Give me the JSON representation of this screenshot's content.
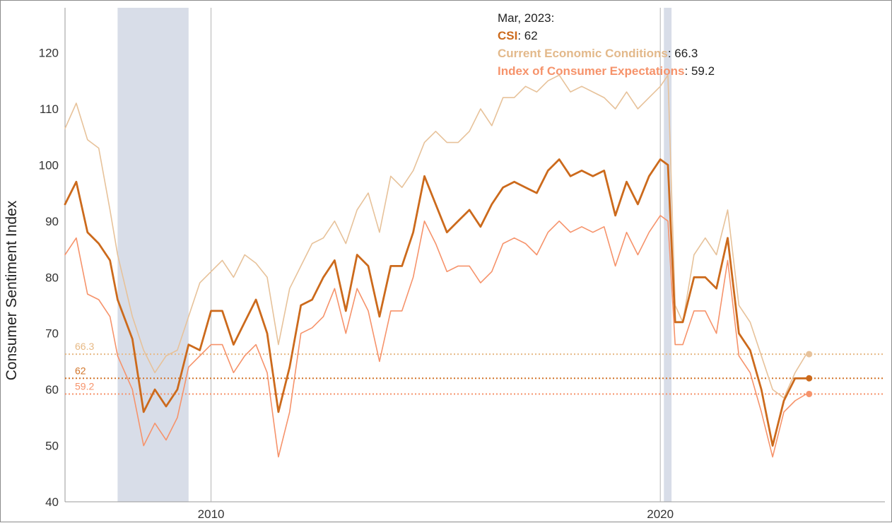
{
  "chart_data": {
    "type": "line",
    "ylabel": "Consumer Sentiment Index",
    "ylim": [
      40,
      128
    ],
    "yticks": [
      40,
      50,
      60,
      70,
      80,
      90,
      100,
      110,
      120
    ],
    "xlim": [
      2006.75,
      2025.0
    ],
    "xticks": [
      {
        "value": 2010,
        "label": "2010"
      },
      {
        "value": 2020,
        "label": "2020"
      }
    ],
    "recessions": [
      [
        2007.92,
        2009.5
      ],
      [
        2020.08,
        2020.25
      ]
    ],
    "tooltip": {
      "date": "Mar, 2023:",
      "rows": [
        {
          "name": "CSI",
          "value": ": 62"
        },
        {
          "name": "Current Economic Conditions",
          "value": ": 66.3"
        },
        {
          "name": "Index of Consumer Expectations",
          "value": ": 59.2"
        }
      ]
    },
    "reference_lines": [
      {
        "label": "66.3",
        "value": 66.3,
        "color": "#e7b985"
      },
      {
        "label": "62",
        "value": 62,
        "color": "#d2752a"
      },
      {
        "label": "59.2",
        "value": 59.2,
        "color": "#f6936b"
      }
    ],
    "series": [
      {
        "name": "Current Economic Conditions",
        "color": "#e7c29a",
        "x": [
          2006.75,
          2007.0,
          2007.25,
          2007.5,
          2007.75,
          2007.92,
          2008.25,
          2008.5,
          2008.75,
          2009.0,
          2009.25,
          2009.5,
          2009.75,
          2010.0,
          2010.25,
          2010.5,
          2010.75,
          2011.0,
          2011.25,
          2011.5,
          2011.75,
          2012.0,
          2012.25,
          2012.5,
          2012.75,
          2013.0,
          2013.25,
          2013.5,
          2013.75,
          2014.0,
          2014.25,
          2014.5,
          2014.75,
          2015.0,
          2015.25,
          2015.5,
          2015.75,
          2016.0,
          2016.25,
          2016.5,
          2016.75,
          2017.0,
          2017.25,
          2017.5,
          2017.75,
          2018.0,
          2018.25,
          2018.5,
          2018.75,
          2019.0,
          2019.25,
          2019.5,
          2019.75,
          2020.0,
          2020.17,
          2020.33,
          2020.5,
          2020.75,
          2021.0,
          2021.25,
          2021.5,
          2021.75,
          2022.0,
          2022.25,
          2022.5,
          2022.75,
          2023.0,
          2023.25
        ],
        "values": [
          106.5,
          111.0,
          104.5,
          103.0,
          92.0,
          84.0,
          73.0,
          67.0,
          63.0,
          66.0,
          67.0,
          73.0,
          79.0,
          81.0,
          83.0,
          80.0,
          84.0,
          82.5,
          80.0,
          68.0,
          78.0,
          82.0,
          86.0,
          87.0,
          90.0,
          86.0,
          92.0,
          95.0,
          88.0,
          98.0,
          96.0,
          99.0,
          104.0,
          106.0,
          104.0,
          104.0,
          106.0,
          110.0,
          107.0,
          112.0,
          112.0,
          114.0,
          113.0,
          115.0,
          116.0,
          113.0,
          114.0,
          113.0,
          112.0,
          110.0,
          113.0,
          110.0,
          112.0,
          114.0,
          116.0,
          75.0,
          72.0,
          84.0,
          87.0,
          84.0,
          92.0,
          75.0,
          72.0,
          66.0,
          60.0,
          58.5,
          63.0,
          66.3
        ]
      },
      {
        "name": "CSI",
        "color": "#cc6a1c",
        "x": [
          2006.75,
          2007.0,
          2007.25,
          2007.5,
          2007.75,
          2007.92,
          2008.25,
          2008.5,
          2008.75,
          2009.0,
          2009.25,
          2009.5,
          2009.75,
          2010.0,
          2010.25,
          2010.5,
          2010.75,
          2011.0,
          2011.25,
          2011.5,
          2011.75,
          2012.0,
          2012.25,
          2012.5,
          2012.75,
          2013.0,
          2013.25,
          2013.5,
          2013.75,
          2014.0,
          2014.25,
          2014.5,
          2014.75,
          2015.0,
          2015.25,
          2015.5,
          2015.75,
          2016.0,
          2016.25,
          2016.5,
          2016.75,
          2017.0,
          2017.25,
          2017.5,
          2017.75,
          2018.0,
          2018.25,
          2018.5,
          2018.75,
          2019.0,
          2019.25,
          2019.5,
          2019.75,
          2020.0,
          2020.17,
          2020.33,
          2020.5,
          2020.75,
          2021.0,
          2021.25,
          2021.5,
          2021.75,
          2022.0,
          2022.25,
          2022.5,
          2022.75,
          2023.0,
          2023.25
        ],
        "values": [
          93.0,
          97.0,
          88.0,
          86.0,
          83.0,
          76.0,
          69.0,
          56.0,
          60.0,
          57.0,
          60.0,
          68.0,
          67.0,
          74.0,
          74.0,
          68.0,
          72.0,
          76.0,
          70.0,
          56.0,
          64.0,
          75.0,
          76.0,
          80.0,
          83.0,
          74.0,
          84.0,
          82.0,
          73.0,
          82.0,
          82.0,
          88.0,
          98.0,
          93.0,
          88.0,
          90.0,
          92.0,
          89.0,
          93.0,
          96.0,
          97.0,
          96.0,
          95.0,
          99.0,
          101.0,
          98.0,
          99.0,
          98.0,
          99.0,
          91.0,
          97.0,
          93.0,
          98.0,
          101.0,
          100.0,
          72.0,
          72.0,
          80.0,
          80.0,
          78.0,
          87.0,
          70.0,
          67.0,
          60.0,
          50.0,
          58.0,
          62.0,
          62.0
        ]
      },
      {
        "name": "Index of Consumer Expectations",
        "color": "#f6936b",
        "x": [
          2006.75,
          2007.0,
          2007.25,
          2007.5,
          2007.75,
          2007.92,
          2008.25,
          2008.5,
          2008.75,
          2009.0,
          2009.25,
          2009.5,
          2009.75,
          2010.0,
          2010.25,
          2010.5,
          2010.75,
          2011.0,
          2011.25,
          2011.5,
          2011.75,
          2012.0,
          2012.25,
          2012.5,
          2012.75,
          2013.0,
          2013.25,
          2013.5,
          2013.75,
          2014.0,
          2014.25,
          2014.5,
          2014.75,
          2015.0,
          2015.25,
          2015.5,
          2015.75,
          2016.0,
          2016.25,
          2016.5,
          2016.75,
          2017.0,
          2017.25,
          2017.5,
          2017.75,
          2018.0,
          2018.25,
          2018.5,
          2018.75,
          2019.0,
          2019.25,
          2019.5,
          2019.75,
          2020.0,
          2020.17,
          2020.33,
          2020.5,
          2020.75,
          2021.0,
          2021.25,
          2021.5,
          2021.75,
          2022.0,
          2022.25,
          2022.5,
          2022.75,
          2023.0,
          2023.25
        ],
        "values": [
          84.0,
          87.0,
          77.0,
          76.0,
          73.0,
          66.0,
          60.0,
          50.0,
          54.0,
          51.0,
          55.0,
          64.0,
          66.0,
          68.0,
          68.0,
          63.0,
          66.0,
          68.0,
          63.0,
          48.0,
          56.0,
          70.0,
          71.0,
          73.0,
          78.0,
          70.0,
          78.0,
          74.0,
          65.0,
          74.0,
          74.0,
          80.0,
          90.0,
          86.0,
          81.0,
          82.0,
          82.0,
          79.0,
          81.0,
          86.0,
          87.0,
          86.0,
          84.0,
          88.0,
          90.0,
          88.0,
          89.0,
          88.0,
          89.0,
          82.0,
          88.0,
          84.0,
          88.0,
          91.0,
          90.0,
          68.0,
          68.0,
          74.0,
          74.0,
          70.0,
          83.0,
          66.0,
          63.0,
          56.0,
          48.0,
          56.0,
          58.0,
          59.2
        ]
      }
    ]
  }
}
